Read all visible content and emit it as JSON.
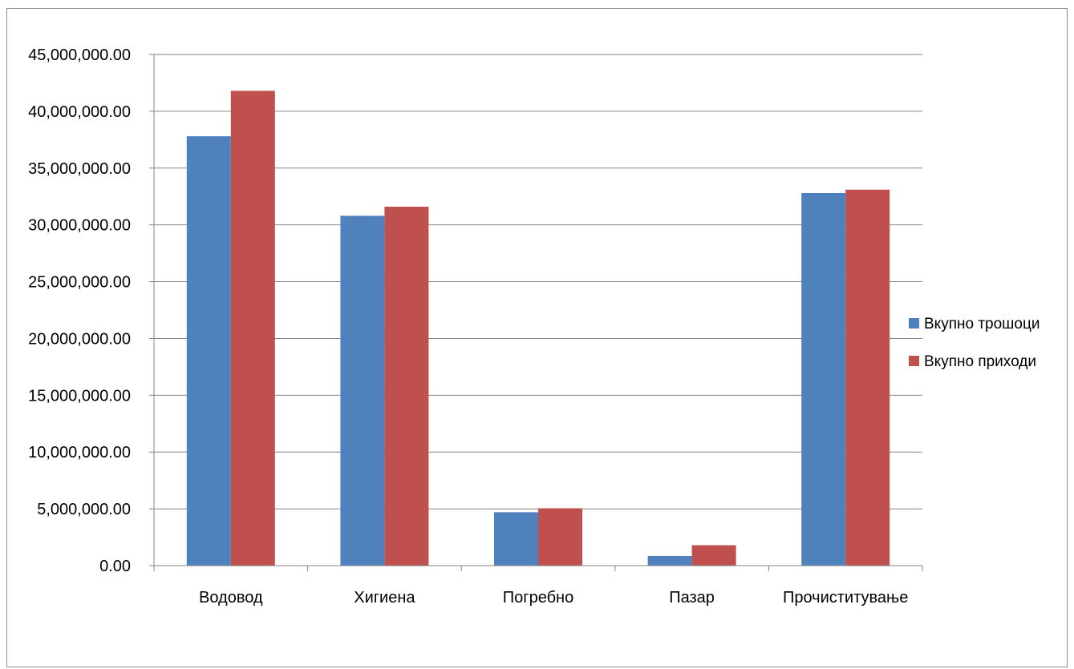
{
  "chart_data": {
    "type": "bar",
    "categories": [
      "Водовод",
      "Хигиена",
      "Погребно",
      "Пазар",
      "Прочиститување"
    ],
    "series": [
      {
        "name": "Вкупно трошоци",
        "color": "#4f81bd",
        "values": [
          37800000,
          30800000,
          4700000,
          850000,
          32800000
        ]
      },
      {
        "name": "Вкупно приходи",
        "color": "#c0504d",
        "values": [
          41800000,
          31600000,
          5050000,
          1800000,
          33100000
        ]
      }
    ],
    "ylim": [
      0,
      45000000
    ],
    "yticks": [
      "0.00",
      "5,000,000.00",
      "10,000,000.00",
      "15,000,000.00",
      "20,000,000.00",
      "25,000,000.00",
      "30,000,000.00",
      "35,000,000.00",
      "40,000,000.00",
      "45,000,000.00"
    ],
    "title": "",
    "xlabel": "",
    "ylabel": "",
    "grid": true,
    "legend_position": "right"
  }
}
